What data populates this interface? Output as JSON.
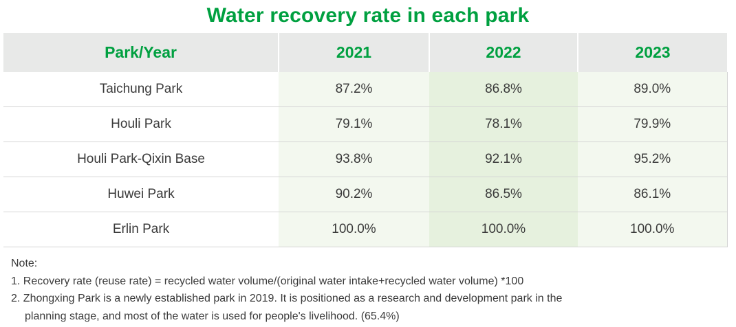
{
  "title": "Water recovery rate in each park",
  "accent_color": "#00a040",
  "table": {
    "headers": [
      "Park/Year",
      "2021",
      "2022",
      "2023"
    ],
    "rows": [
      {
        "park": "Taichung Park",
        "y2021": "87.2%",
        "y2022": "86.8%",
        "y2023": "89.0%"
      },
      {
        "park": "Houli Park",
        "y2021": "79.1%",
        "y2022": "78.1%",
        "y2023": "79.9%"
      },
      {
        "park": "Houli Park-Qixin Base",
        "y2021": "93.8%",
        "y2022": "92.1%",
        "y2023": "95.2%"
      },
      {
        "park": "Huwei Park",
        "y2021": "90.2%",
        "y2022": "86.5%",
        "y2023": "86.1%"
      },
      {
        "park": "Erlin Park",
        "y2021": "100.0%",
        "y2022": "100.0%",
        "y2023": "100.0%"
      }
    ]
  },
  "notes": {
    "heading": "Note:",
    "line1": "1. Recovery rate (reuse rate) = recycled water volume/(original water intake+recycled water volume) *100",
    "line2a": "2. Zhongxing Park is a newly established park in 2019. It is positioned as a research and development park in the",
    "line2b": "planning stage, and most of the water is used for people's livelihood. (65.4%)"
  }
}
